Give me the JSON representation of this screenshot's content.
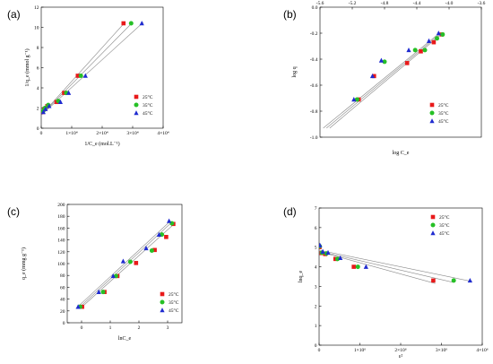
{
  "chart_data": [
    {
      "panel_label": "(a)",
      "type": "scatter",
      "xlabel": "1/C_e (mol.L⁻¹)",
      "ylabel": "1/q_e (mmol g⁻¹)",
      "xlim": [
        0,
        40000
      ],
      "ylim": [
        0,
        12
      ],
      "xticks": [
        0,
        10000,
        20000,
        30000,
        40000
      ],
      "xtick_labels": [
        "0",
        "1×10⁴",
        "2×10⁴",
        "3×10⁴",
        "4×10⁴"
      ],
      "yticks": [
        0,
        2,
        4,
        6,
        8,
        10,
        12
      ],
      "ytick_labels": [
        "0",
        "2",
        "4",
        "6",
        "8",
        "10",
        "12"
      ],
      "legend_position": "right",
      "series": [
        {
          "name": "25°C",
          "color": "#e8191a",
          "marker": "square",
          "x": [
            500,
            1000,
            2000,
            5000,
            7500,
            12000,
            27000
          ],
          "y": [
            1.6,
            1.9,
            2.2,
            2.6,
            3.5,
            5.2,
            10.4
          ],
          "fit": [
            [
              0,
              1.3
            ],
            [
              27500,
              10.5
            ]
          ]
        },
        {
          "name": "35°C",
          "color": "#26c026",
          "marker": "circle",
          "x": [
            600,
            1200,
            2300,
            5600,
            8200,
            13000,
            29500
          ],
          "y": [
            1.7,
            2.0,
            2.3,
            2.7,
            3.5,
            5.2,
            10.4
          ],
          "fit": [
            [
              0,
              1.3
            ],
            [
              30000,
              10.5
            ]
          ]
        },
        {
          "name": "45°C",
          "color": "#1f2bd0",
          "marker": "triangle",
          "x": [
            700,
            1400,
            2600,
            6300,
            9000,
            14500,
            33000
          ],
          "y": [
            1.6,
            1.9,
            2.2,
            2.6,
            3.5,
            5.2,
            10.4
          ],
          "fit": [
            [
              0,
              1.3
            ],
            [
              33500,
              10.5
            ]
          ]
        }
      ]
    },
    {
      "panel_label": "(b)",
      "type": "scatter",
      "xlabel": "log C_e",
      "ylabel": "log q",
      "xlim": [
        -5.6,
        -3.6
      ],
      "ylim": [
        -1.0,
        0.0
      ],
      "xticks": [
        -5.6,
        -5.2,
        -4.8,
        -4.4,
        -4.0,
        -3.6
      ],
      "xtick_labels": [
        "-5.6",
        "-5.2",
        "-4.8",
        "-4.4",
        "-4.0",
        "-3.6"
      ],
      "yticks": [
        -1.0,
        -0.8,
        -0.6,
        -0.4,
        -0.2,
        0.0
      ],
      "ytick_labels": [
        "-1.0",
        "-0.8",
        "-0.6",
        "-0.4",
        "-0.2",
        "0.0"
      ],
      "x_axis_on_top": true,
      "legend_position": "bottom-right",
      "series": [
        {
          "name": "25°C",
          "color": "#e8191a",
          "marker": "square",
          "x": [
            -5.12,
            -4.93,
            -4.52,
            -4.35,
            -4.19,
            -4.09
          ],
          "y": [
            -0.71,
            -0.53,
            -0.43,
            -0.34,
            -0.27,
            -0.21
          ],
          "fit": [
            [
              -5.48,
              -0.93
            ],
            [
              -4.08,
              -0.2
            ]
          ]
        },
        {
          "name": "35°C",
          "color": "#26c026",
          "marker": "circle",
          "x": [
            -5.14,
            -4.8,
            -4.42,
            -4.3,
            -4.15,
            -4.08
          ],
          "y": [
            -0.71,
            -0.42,
            -0.33,
            -0.33,
            -0.24,
            -0.21
          ],
          "fit": [
            [
              -5.52,
              -0.93
            ],
            [
              -4.1,
              -0.2
            ]
          ]
        },
        {
          "name": "45°C",
          "color": "#1f2bd0",
          "marker": "triangle",
          "x": [
            -5.18,
            -4.95,
            -4.84,
            -4.5,
            -4.25,
            -4.13
          ],
          "y": [
            -0.71,
            -0.53,
            -0.41,
            -0.33,
            -0.26,
            -0.2
          ],
          "fit": [
            [
              -5.56,
              -0.93
            ],
            [
              -4.12,
              -0.2
            ]
          ]
        }
      ]
    },
    {
      "panel_label": "(c)",
      "type": "scatter",
      "xlabel": "lnC_e",
      "ylabel": "q_e (mmg g⁻¹)",
      "xlim": [
        -0.5,
        3.5
      ],
      "ylim": [
        0,
        200
      ],
      "xticks": [
        0,
        1,
        2,
        3
      ],
      "xtick_labels": [
        "0",
        "1",
        "2",
        "3"
      ],
      "yticks": [
        0,
        20,
        40,
        60,
        80,
        100,
        120,
        140,
        160,
        180,
        200
      ],
      "ytick_labels": [
        "0",
        "20",
        "40",
        "60",
        "80",
        "100",
        "120",
        "140",
        "160",
        "180",
        "200"
      ],
      "legend_position": "bottom-right",
      "series": [
        {
          "name": "25°C",
          "color": "#e8191a",
          "marker": "square",
          "x": [
            0.02,
            0.8,
            1.25,
            1.9,
            2.55,
            2.95,
            3.2
          ],
          "y": [
            27,
            52,
            79,
            101,
            123,
            145,
            167
          ],
          "fit": [
            [
              -0.05,
              24
            ],
            [
              3.25,
              168
            ]
          ]
        },
        {
          "name": "35°C",
          "color": "#26c026",
          "marker": "circle",
          "x": [
            -0.05,
            0.75,
            1.2,
            1.7,
            2.45,
            2.8,
            3.15
          ],
          "y": [
            27,
            52,
            79,
            103,
            122,
            149,
            168
          ],
          "fit": [
            [
              -0.12,
              24
            ],
            [
              3.15,
              170
            ]
          ]
        },
        {
          "name": "45°C",
          "color": "#1f2bd0",
          "marker": "triangle",
          "x": [
            -0.12,
            0.6,
            1.1,
            1.45,
            2.25,
            2.7,
            3.05
          ],
          "y": [
            27,
            52,
            79,
            104,
            126,
            149,
            172
          ],
          "fit": [
            [
              -0.2,
              24
            ],
            [
              3.1,
              172
            ]
          ]
        }
      ]
    },
    {
      "panel_label": "(d)",
      "type": "scatter",
      "xlabel": "ε²",
      "ylabel": "lnq_e",
      "xlim": [
        0,
        4000000
      ],
      "ylim": [
        0,
        7
      ],
      "xticks": [
        0,
        1000000,
        2000000,
        3000000,
        4000000
      ],
      "xtick_labels": [
        "0",
        "1×10⁶",
        "2×10⁶",
        "3×10⁶",
        "4×10⁶"
      ],
      "yticks": [
        0,
        1,
        2,
        3,
        4,
        5,
        6,
        7
      ],
      "ytick_labels": [
        "0",
        "1",
        "2",
        "3",
        "4",
        "5",
        "6",
        "7"
      ],
      "legend_position": "top-right",
      "series": [
        {
          "name": "25°C",
          "color": "#e8191a",
          "marker": "square",
          "x": [
            10000,
            60000,
            150000,
            400000,
            850000,
            2800000
          ],
          "y": [
            5.0,
            4.7,
            4.65,
            4.4,
            4.0,
            3.3
          ],
          "fit": [
            [
              0,
              4.78
            ],
            [
              2850000,
              3.15
            ]
          ]
        },
        {
          "name": "35°C",
          "color": "#26c026",
          "marker": "circle",
          "x": [
            15000,
            70000,
            180000,
            450000,
            950000,
            3300000
          ],
          "y": [
            5.05,
            4.72,
            4.68,
            4.4,
            4.0,
            3.3
          ],
          "fit": [
            [
              0,
              4.8
            ],
            [
              3300000,
              3.2
            ]
          ]
        },
        {
          "name": "45°C",
          "color": "#1f2bd0",
          "marker": "triangle",
          "x": [
            20000,
            90000,
            220000,
            520000,
            1150000,
            3700000
          ],
          "y": [
            5.1,
            4.78,
            4.72,
            4.45,
            4.0,
            3.3
          ],
          "fit": [
            [
              0,
              4.85
            ],
            [
              3750000,
              3.25
            ]
          ]
        }
      ]
    }
  ]
}
